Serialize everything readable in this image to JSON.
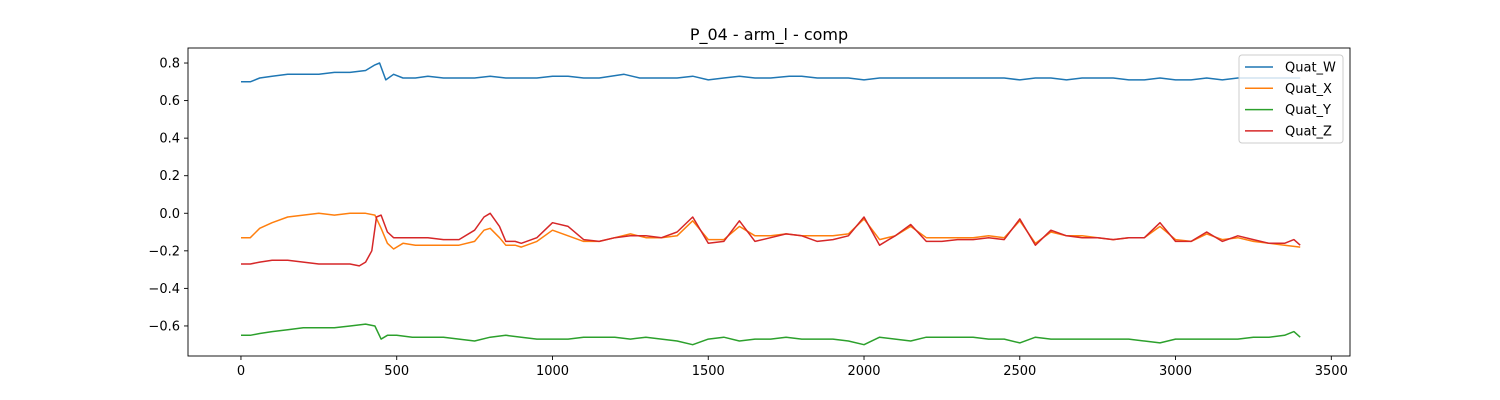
{
  "chart_data": {
    "type": "line",
    "title": "P_04 - arm_l - comp",
    "xlabel": "",
    "ylabel": "",
    "xlim": [
      -170,
      3560
    ],
    "ylim": [
      -0.76,
      0.88
    ],
    "xticks": [
      0,
      500,
      1000,
      1500,
      2000,
      2500,
      3000,
      3500
    ],
    "yticks": [
      0.8,
      0.6,
      0.4,
      0.2,
      0.0,
      -0.2,
      -0.4,
      -0.6
    ],
    "ytick_labels": [
      "0.8",
      "0.6",
      "0.4",
      "0.2",
      "0.0",
      "−0.2",
      "−0.4",
      "−0.6"
    ],
    "legend_position": "top-right",
    "grid": false,
    "series": [
      {
        "name": "Quat_W",
        "color": "#1f77b4",
        "points": [
          [
            0,
            0.7
          ],
          [
            30,
            0.7
          ],
          [
            60,
            0.72
          ],
          [
            100,
            0.73
          ],
          [
            150,
            0.74
          ],
          [
            200,
            0.74
          ],
          [
            250,
            0.74
          ],
          [
            300,
            0.75
          ],
          [
            350,
            0.75
          ],
          [
            400,
            0.76
          ],
          [
            430,
            0.79
          ],
          [
            445,
            0.8
          ],
          [
            465,
            0.71
          ],
          [
            490,
            0.74
          ],
          [
            520,
            0.72
          ],
          [
            560,
            0.72
          ],
          [
            600,
            0.73
          ],
          [
            650,
            0.72
          ],
          [
            700,
            0.72
          ],
          [
            750,
            0.72
          ],
          [
            800,
            0.73
          ],
          [
            850,
            0.72
          ],
          [
            900,
            0.72
          ],
          [
            950,
            0.72
          ],
          [
            1000,
            0.73
          ],
          [
            1050,
            0.73
          ],
          [
            1100,
            0.72
          ],
          [
            1150,
            0.72
          ],
          [
            1230,
            0.74
          ],
          [
            1280,
            0.72
          ],
          [
            1350,
            0.72
          ],
          [
            1400,
            0.72
          ],
          [
            1450,
            0.73
          ],
          [
            1500,
            0.71
          ],
          [
            1550,
            0.72
          ],
          [
            1600,
            0.73
          ],
          [
            1650,
            0.72
          ],
          [
            1700,
            0.72
          ],
          [
            1760,
            0.73
          ],
          [
            1800,
            0.73
          ],
          [
            1850,
            0.72
          ],
          [
            1900,
            0.72
          ],
          [
            1950,
            0.72
          ],
          [
            2000,
            0.71
          ],
          [
            2050,
            0.72
          ],
          [
            2100,
            0.72
          ],
          [
            2150,
            0.72
          ],
          [
            2200,
            0.72
          ],
          [
            2250,
            0.72
          ],
          [
            2300,
            0.72
          ],
          [
            2350,
            0.72
          ],
          [
            2420,
            0.72
          ],
          [
            2450,
            0.72
          ],
          [
            2500,
            0.71
          ],
          [
            2550,
            0.72
          ],
          [
            2600,
            0.72
          ],
          [
            2650,
            0.71
          ],
          [
            2700,
            0.72
          ],
          [
            2750,
            0.72
          ],
          [
            2800,
            0.72
          ],
          [
            2850,
            0.71
          ],
          [
            2900,
            0.71
          ],
          [
            2950,
            0.72
          ],
          [
            3000,
            0.71
          ],
          [
            3050,
            0.71
          ],
          [
            3100,
            0.72
          ],
          [
            3150,
            0.71
          ],
          [
            3200,
            0.72
          ],
          [
            3250,
            0.72
          ],
          [
            3300,
            0.72
          ],
          [
            3350,
            0.72
          ],
          [
            3400,
            0.72
          ]
        ]
      },
      {
        "name": "Quat_X",
        "color": "#ff7f0e",
        "points": [
          [
            0,
            -0.13
          ],
          [
            30,
            -0.13
          ],
          [
            60,
            -0.08
          ],
          [
            100,
            -0.05
          ],
          [
            150,
            -0.02
          ],
          [
            200,
            -0.01
          ],
          [
            250,
            0.0
          ],
          [
            300,
            -0.01
          ],
          [
            350,
            0.0
          ],
          [
            400,
            0.0
          ],
          [
            430,
            -0.01
          ],
          [
            450,
            -0.08
          ],
          [
            470,
            -0.16
          ],
          [
            490,
            -0.19
          ],
          [
            520,
            -0.16
          ],
          [
            560,
            -0.17
          ],
          [
            600,
            -0.17
          ],
          [
            650,
            -0.17
          ],
          [
            700,
            -0.17
          ],
          [
            750,
            -0.15
          ],
          [
            780,
            -0.09
          ],
          [
            800,
            -0.08
          ],
          [
            830,
            -0.13
          ],
          [
            850,
            -0.17
          ],
          [
            880,
            -0.17
          ],
          [
            900,
            -0.18
          ],
          [
            950,
            -0.15
          ],
          [
            1000,
            -0.09
          ],
          [
            1050,
            -0.12
          ],
          [
            1100,
            -0.15
          ],
          [
            1150,
            -0.15
          ],
          [
            1200,
            -0.13
          ],
          [
            1250,
            -0.11
          ],
          [
            1300,
            -0.13
          ],
          [
            1350,
            -0.13
          ],
          [
            1400,
            -0.12
          ],
          [
            1450,
            -0.04
          ],
          [
            1500,
            -0.14
          ],
          [
            1550,
            -0.14
          ],
          [
            1600,
            -0.07
          ],
          [
            1650,
            -0.12
          ],
          [
            1700,
            -0.12
          ],
          [
            1750,
            -0.11
          ],
          [
            1800,
            -0.12
          ],
          [
            1850,
            -0.12
          ],
          [
            1900,
            -0.12
          ],
          [
            1950,
            -0.11
          ],
          [
            2000,
            -0.03
          ],
          [
            2050,
            -0.14
          ],
          [
            2100,
            -0.12
          ],
          [
            2150,
            -0.07
          ],
          [
            2200,
            -0.13
          ],
          [
            2250,
            -0.13
          ],
          [
            2300,
            -0.13
          ],
          [
            2350,
            -0.13
          ],
          [
            2400,
            -0.12
          ],
          [
            2450,
            -0.13
          ],
          [
            2500,
            -0.04
          ],
          [
            2550,
            -0.16
          ],
          [
            2600,
            -0.1
          ],
          [
            2650,
            -0.12
          ],
          [
            2700,
            -0.12
          ],
          [
            2750,
            -0.13
          ],
          [
            2800,
            -0.14
          ],
          [
            2850,
            -0.13
          ],
          [
            2900,
            -0.13
          ],
          [
            2950,
            -0.07
          ],
          [
            3000,
            -0.14
          ],
          [
            3050,
            -0.15
          ],
          [
            3100,
            -0.11
          ],
          [
            3150,
            -0.14
          ],
          [
            3200,
            -0.13
          ],
          [
            3250,
            -0.15
          ],
          [
            3300,
            -0.16
          ],
          [
            3350,
            -0.17
          ],
          [
            3400,
            -0.18
          ]
        ]
      },
      {
        "name": "Quat_Y",
        "color": "#2ca02c",
        "points": [
          [
            0,
            -0.65
          ],
          [
            30,
            -0.65
          ],
          [
            60,
            -0.64
          ],
          [
            100,
            -0.63
          ],
          [
            150,
            -0.62
          ],
          [
            200,
            -0.61
          ],
          [
            250,
            -0.61
          ],
          [
            300,
            -0.61
          ],
          [
            350,
            -0.6
          ],
          [
            400,
            -0.59
          ],
          [
            430,
            -0.6
          ],
          [
            450,
            -0.67
          ],
          [
            470,
            -0.65
          ],
          [
            500,
            -0.65
          ],
          [
            550,
            -0.66
          ],
          [
            600,
            -0.66
          ],
          [
            650,
            -0.66
          ],
          [
            700,
            -0.67
          ],
          [
            750,
            -0.68
          ],
          [
            800,
            -0.66
          ],
          [
            850,
            -0.65
          ],
          [
            900,
            -0.66
          ],
          [
            950,
            -0.67
          ],
          [
            1000,
            -0.67
          ],
          [
            1050,
            -0.67
          ],
          [
            1100,
            -0.66
          ],
          [
            1150,
            -0.66
          ],
          [
            1200,
            -0.66
          ],
          [
            1250,
            -0.67
          ],
          [
            1300,
            -0.66
          ],
          [
            1350,
            -0.67
          ],
          [
            1400,
            -0.68
          ],
          [
            1450,
            -0.7
          ],
          [
            1500,
            -0.67
          ],
          [
            1550,
            -0.66
          ],
          [
            1600,
            -0.68
          ],
          [
            1650,
            -0.67
          ],
          [
            1700,
            -0.67
          ],
          [
            1750,
            -0.66
          ],
          [
            1800,
            -0.67
          ],
          [
            1850,
            -0.67
          ],
          [
            1900,
            -0.67
          ],
          [
            1950,
            -0.68
          ],
          [
            2000,
            -0.7
          ],
          [
            2050,
            -0.66
          ],
          [
            2100,
            -0.67
          ],
          [
            2150,
            -0.68
          ],
          [
            2200,
            -0.66
          ],
          [
            2250,
            -0.66
          ],
          [
            2300,
            -0.66
          ],
          [
            2350,
            -0.66
          ],
          [
            2400,
            -0.67
          ],
          [
            2450,
            -0.67
          ],
          [
            2500,
            -0.69
          ],
          [
            2550,
            -0.66
          ],
          [
            2600,
            -0.67
          ],
          [
            2650,
            -0.67
          ],
          [
            2700,
            -0.67
          ],
          [
            2750,
            -0.67
          ],
          [
            2800,
            -0.67
          ],
          [
            2850,
            -0.67
          ],
          [
            2900,
            -0.68
          ],
          [
            2950,
            -0.69
          ],
          [
            3000,
            -0.67
          ],
          [
            3050,
            -0.67
          ],
          [
            3100,
            -0.67
          ],
          [
            3150,
            -0.67
          ],
          [
            3200,
            -0.67
          ],
          [
            3250,
            -0.66
          ],
          [
            3300,
            -0.66
          ],
          [
            3350,
            -0.65
          ],
          [
            3380,
            -0.63
          ],
          [
            3400,
            -0.66
          ]
        ]
      },
      {
        "name": "Quat_Z",
        "color": "#d62728",
        "points": [
          [
            0,
            -0.27
          ],
          [
            30,
            -0.27
          ],
          [
            60,
            -0.26
          ],
          [
            100,
            -0.25
          ],
          [
            150,
            -0.25
          ],
          [
            200,
            -0.26
          ],
          [
            250,
            -0.27
          ],
          [
            300,
            -0.27
          ],
          [
            350,
            -0.27
          ],
          [
            380,
            -0.28
          ],
          [
            400,
            -0.26
          ],
          [
            420,
            -0.2
          ],
          [
            435,
            -0.02
          ],
          [
            450,
            -0.01
          ],
          [
            470,
            -0.1
          ],
          [
            490,
            -0.13
          ],
          [
            520,
            -0.13
          ],
          [
            560,
            -0.13
          ],
          [
            600,
            -0.13
          ],
          [
            650,
            -0.14
          ],
          [
            700,
            -0.14
          ],
          [
            750,
            -0.09
          ],
          [
            780,
            -0.02
          ],
          [
            800,
            0.0
          ],
          [
            830,
            -0.07
          ],
          [
            850,
            -0.15
          ],
          [
            880,
            -0.15
          ],
          [
            900,
            -0.16
          ],
          [
            950,
            -0.13
          ],
          [
            1000,
            -0.05
          ],
          [
            1050,
            -0.07
          ],
          [
            1100,
            -0.14
          ],
          [
            1150,
            -0.15
          ],
          [
            1200,
            -0.13
          ],
          [
            1250,
            -0.12
          ],
          [
            1300,
            -0.12
          ],
          [
            1350,
            -0.13
          ],
          [
            1400,
            -0.1
          ],
          [
            1450,
            -0.02
          ],
          [
            1500,
            -0.16
          ],
          [
            1550,
            -0.15
          ],
          [
            1600,
            -0.04
          ],
          [
            1650,
            -0.15
          ],
          [
            1700,
            -0.13
          ],
          [
            1750,
            -0.11
          ],
          [
            1800,
            -0.12
          ],
          [
            1850,
            -0.15
          ],
          [
            1900,
            -0.14
          ],
          [
            1950,
            -0.12
          ],
          [
            2000,
            -0.02
          ],
          [
            2050,
            -0.17
          ],
          [
            2100,
            -0.12
          ],
          [
            2150,
            -0.06
          ],
          [
            2200,
            -0.15
          ],
          [
            2250,
            -0.15
          ],
          [
            2300,
            -0.14
          ],
          [
            2350,
            -0.14
          ],
          [
            2400,
            -0.13
          ],
          [
            2450,
            -0.14
          ],
          [
            2500,
            -0.03
          ],
          [
            2550,
            -0.17
          ],
          [
            2600,
            -0.09
          ],
          [
            2650,
            -0.12
          ],
          [
            2700,
            -0.13
          ],
          [
            2750,
            -0.13
          ],
          [
            2800,
            -0.14
          ],
          [
            2850,
            -0.13
          ],
          [
            2900,
            -0.13
          ],
          [
            2950,
            -0.05
          ],
          [
            3000,
            -0.15
          ],
          [
            3050,
            -0.15
          ],
          [
            3100,
            -0.1
          ],
          [
            3150,
            -0.15
          ],
          [
            3200,
            -0.12
          ],
          [
            3250,
            -0.14
          ],
          [
            3300,
            -0.16
          ],
          [
            3350,
            -0.16
          ],
          [
            3380,
            -0.14
          ],
          [
            3400,
            -0.17
          ]
        ]
      }
    ]
  }
}
